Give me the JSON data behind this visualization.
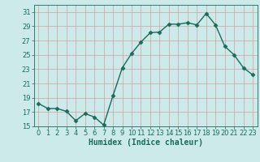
{
  "x": [
    0,
    1,
    2,
    3,
    4,
    5,
    6,
    7,
    8,
    9,
    10,
    11,
    12,
    13,
    14,
    15,
    16,
    17,
    18,
    19,
    20,
    21,
    22,
    23
  ],
  "y": [
    18.2,
    17.5,
    17.5,
    17.1,
    15.8,
    16.8,
    16.3,
    15.2,
    19.3,
    23.2,
    25.2,
    26.8,
    28.1,
    28.2,
    29.3,
    29.3,
    29.5,
    29.2,
    30.8,
    29.2,
    26.2,
    25.0,
    23.2,
    22.2
  ],
  "line_color": "#1a6b5a",
  "marker": "D",
  "markersize": 2.5,
  "linewidth": 1.0,
  "bg_color": "#cceaea",
  "grid_color": "#b8d8d8",
  "xlabel": "Humidex (Indice chaleur)",
  "ylim": [
    15,
    32
  ],
  "xlim": [
    -0.5,
    23.5
  ],
  "yticks": [
    15,
    17,
    19,
    21,
    23,
    25,
    27,
    29,
    31
  ],
  "xticks": [
    0,
    1,
    2,
    3,
    4,
    5,
    6,
    7,
    8,
    9,
    10,
    11,
    12,
    13,
    14,
    15,
    16,
    17,
    18,
    19,
    20,
    21,
    22,
    23
  ],
  "tick_color": "#1a6b5a",
  "label_color": "#1a6b5a",
  "xlabel_fontsize": 7,
  "tick_fontsize": 6
}
